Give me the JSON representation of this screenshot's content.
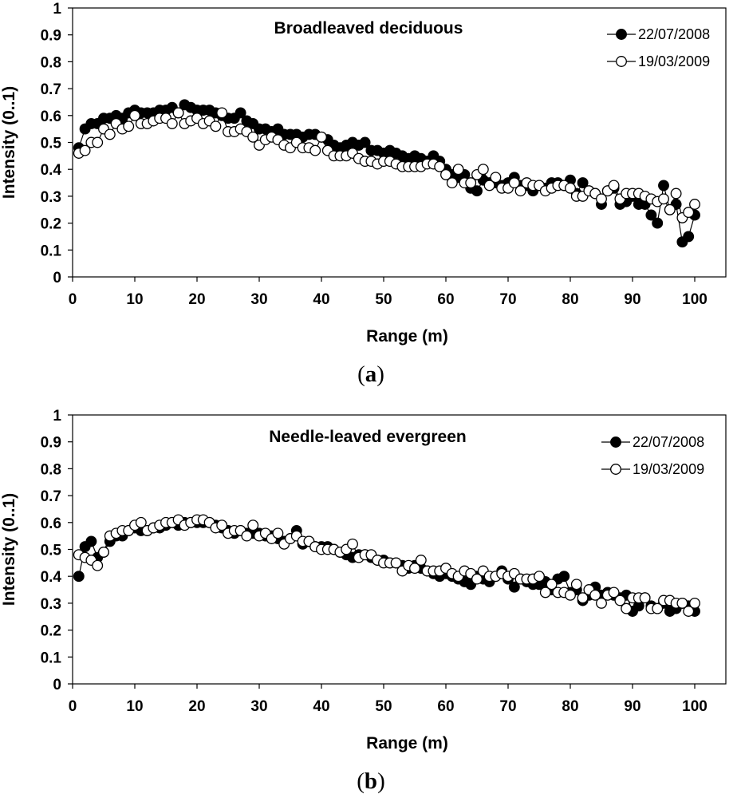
{
  "chart_data": [
    {
      "type": "scatter",
      "title": "Broadleaved deciduous",
      "xlabel": "Range (m)",
      "ylabel": "Intensity (0..1)",
      "xlim": [
        0,
        105
      ],
      "ylim": [
        0,
        1
      ],
      "xticks": [
        "0",
        "10",
        "20",
        "30",
        "40",
        "50",
        "60",
        "70",
        "80",
        "90",
        "100"
      ],
      "yticks": [
        "0",
        "0.1",
        "0.2",
        "0.3",
        "0.4",
        "0.5",
        "0.6",
        "0.7",
        "0.8",
        "0.9",
        "1"
      ],
      "panel_open": "(",
      "panel_letter": "a",
      "panel_close": ")",
      "series": [
        {
          "name": "22/07/2008",
          "marker": "filled",
          "x": [
            1,
            2,
            3,
            4,
            5,
            6,
            7,
            8,
            9,
            10,
            11,
            12,
            13,
            14,
            15,
            16,
            17,
            18,
            19,
            20,
            21,
            22,
            23,
            24,
            25,
            26,
            27,
            28,
            29,
            30,
            31,
            32,
            33,
            34,
            35,
            36,
            37,
            38,
            39,
            40,
            41,
            42,
            43,
            44,
            45,
            46,
            47,
            48,
            49,
            50,
            51,
            52,
            53,
            54,
            55,
            56,
            57,
            58,
            59,
            60,
            61,
            62,
            63,
            64,
            65,
            66,
            67,
            68,
            69,
            70,
            71,
            72,
            73,
            74,
            75,
            76,
            77,
            78,
            79,
            80,
            81,
            82,
            83,
            84,
            85,
            86,
            87,
            88,
            89,
            90,
            91,
            92,
            93,
            94,
            95,
            96,
            97,
            98,
            99,
            100
          ],
          "values": [
            0.48,
            0.55,
            0.57,
            0.57,
            0.59,
            0.59,
            0.6,
            0.59,
            0.61,
            0.62,
            0.61,
            0.61,
            0.61,
            0.62,
            0.62,
            0.63,
            0.61,
            0.64,
            0.63,
            0.62,
            0.62,
            0.62,
            0.61,
            0.6,
            0.59,
            0.59,
            0.61,
            0.58,
            0.57,
            0.55,
            0.55,
            0.54,
            0.55,
            0.53,
            0.53,
            0.53,
            0.52,
            0.53,
            0.53,
            0.52,
            0.51,
            0.49,
            0.48,
            0.49,
            0.5,
            0.49,
            0.5,
            0.47,
            0.47,
            0.46,
            0.47,
            0.46,
            0.45,
            0.44,
            0.45,
            0.44,
            0.43,
            0.45,
            0.43,
            0.4,
            0.38,
            0.37,
            0.38,
            0.33,
            0.32,
            0.36,
            0.35,
            0.35,
            0.34,
            0.35,
            0.37,
            0.34,
            0.34,
            0.32,
            0.34,
            0.33,
            0.35,
            0.35,
            0.34,
            0.36,
            0.31,
            0.35,
            0.32,
            0.31,
            0.27,
            0.32,
            0.33,
            0.27,
            0.28,
            0.3,
            0.27,
            0.27,
            0.23,
            0.2,
            0.34,
            0.25,
            0.27,
            0.13,
            0.15,
            0.23
          ]
        },
        {
          "name": "19/03/2009",
          "marker": "open",
          "x": [
            1,
            2,
            3,
            4,
            5,
            6,
            7,
            8,
            9,
            10,
            11,
            12,
            13,
            14,
            15,
            16,
            17,
            18,
            19,
            20,
            21,
            22,
            23,
            24,
            25,
            26,
            27,
            28,
            29,
            30,
            31,
            32,
            33,
            34,
            35,
            36,
            37,
            38,
            39,
            40,
            41,
            42,
            43,
            44,
            45,
            46,
            47,
            48,
            49,
            50,
            51,
            52,
            53,
            54,
            55,
            56,
            57,
            58,
            59,
            60,
            61,
            62,
            63,
            64,
            65,
            66,
            67,
            68,
            69,
            70,
            71,
            72,
            73,
            74,
            75,
            76,
            77,
            78,
            79,
            80,
            81,
            82,
            83,
            84,
            85,
            86,
            87,
            88,
            89,
            90,
            91,
            92,
            93,
            94,
            95,
            96,
            97,
            98,
            99,
            100
          ],
          "values": [
            0.46,
            0.47,
            0.5,
            0.5,
            0.55,
            0.53,
            0.57,
            0.55,
            0.56,
            0.6,
            0.57,
            0.57,
            0.58,
            0.59,
            0.59,
            0.57,
            0.61,
            0.57,
            0.58,
            0.59,
            0.57,
            0.58,
            0.56,
            0.61,
            0.54,
            0.54,
            0.55,
            0.54,
            0.52,
            0.49,
            0.51,
            0.52,
            0.51,
            0.49,
            0.48,
            0.5,
            0.48,
            0.48,
            0.47,
            0.52,
            0.47,
            0.45,
            0.45,
            0.45,
            0.46,
            0.44,
            0.43,
            0.43,
            0.42,
            0.43,
            0.43,
            0.42,
            0.41,
            0.41,
            0.41,
            0.41,
            0.42,
            0.42,
            0.41,
            0.38,
            0.35,
            0.4,
            0.35,
            0.35,
            0.38,
            0.4,
            0.34,
            0.37,
            0.33,
            0.33,
            0.35,
            0.32,
            0.35,
            0.34,
            0.34,
            0.32,
            0.33,
            0.34,
            0.34,
            0.33,
            0.3,
            0.3,
            0.32,
            0.31,
            0.29,
            0.32,
            0.34,
            0.29,
            0.31,
            0.31,
            0.31,
            0.3,
            0.29,
            0.28,
            0.29,
            0.25,
            0.31,
            0.22,
            0.24,
            0.27
          ]
        }
      ]
    },
    {
      "type": "scatter",
      "title": "Needle-leaved evergreen",
      "xlabel": "Range (m)",
      "ylabel": "Intensity (0..1)",
      "xlim": [
        0,
        105
      ],
      "ylim": [
        0,
        1
      ],
      "xticks": [
        "0",
        "10",
        "20",
        "30",
        "40",
        "50",
        "60",
        "70",
        "80",
        "90",
        "100"
      ],
      "yticks": [
        "0",
        "0.1",
        "0.2",
        "0.3",
        "0.4",
        "0.5",
        "0.6",
        "0.7",
        "0.8",
        "0.9",
        "1"
      ],
      "panel_open": "(",
      "panel_letter": "b",
      "panel_close": ")",
      "series": [
        {
          "name": "22/07/2008",
          "marker": "filled",
          "x": [
            1,
            2,
            3,
            4,
            5,
            6,
            7,
            8,
            9,
            10,
            11,
            12,
            13,
            14,
            15,
            16,
            17,
            18,
            19,
            20,
            21,
            22,
            23,
            24,
            25,
            26,
            27,
            28,
            29,
            30,
            31,
            32,
            33,
            34,
            35,
            36,
            37,
            38,
            39,
            40,
            41,
            42,
            43,
            44,
            45,
            46,
            47,
            48,
            49,
            50,
            51,
            52,
            53,
            54,
            55,
            56,
            57,
            58,
            59,
            60,
            61,
            62,
            63,
            64,
            65,
            66,
            67,
            68,
            69,
            70,
            71,
            72,
            73,
            74,
            75,
            76,
            77,
            78,
            79,
            80,
            81,
            82,
            83,
            84,
            85,
            86,
            87,
            88,
            89,
            90,
            91,
            92,
            93,
            94,
            95,
            96,
            97,
            98,
            99,
            100
          ],
          "values": [
            0.4,
            0.51,
            0.53,
            0.47,
            0.49,
            0.53,
            0.55,
            0.55,
            0.57,
            0.58,
            0.57,
            0.57,
            0.58,
            0.58,
            0.59,
            0.6,
            0.59,
            0.6,
            0.6,
            0.6,
            0.6,
            0.6,
            0.59,
            0.58,
            0.57,
            0.56,
            0.57,
            0.56,
            0.56,
            0.56,
            0.55,
            0.55,
            0.54,
            0.53,
            0.54,
            0.57,
            0.52,
            0.53,
            0.51,
            0.51,
            0.51,
            0.5,
            0.49,
            0.48,
            0.47,
            0.48,
            0.48,
            0.47,
            0.46,
            0.46,
            0.45,
            0.45,
            0.44,
            0.43,
            0.44,
            0.43,
            0.42,
            0.41,
            0.4,
            0.41,
            0.4,
            0.39,
            0.38,
            0.37,
            0.4,
            0.39,
            0.38,
            0.4,
            0.42,
            0.39,
            0.36,
            0.39,
            0.38,
            0.37,
            0.37,
            0.38,
            0.35,
            0.39,
            0.4,
            0.34,
            0.35,
            0.31,
            0.33,
            0.36,
            0.33,
            0.34,
            0.33,
            0.32,
            0.33,
            0.27,
            0.29,
            0.32,
            0.29,
            0.28,
            0.3,
            0.27,
            0.28,
            0.3,
            0.29,
            0.27
          ]
        },
        {
          "name": "19/03/2009",
          "marker": "open",
          "x": [
            1,
            2,
            3,
            4,
            5,
            6,
            7,
            8,
            9,
            10,
            11,
            12,
            13,
            14,
            15,
            16,
            17,
            18,
            19,
            20,
            21,
            22,
            23,
            24,
            25,
            26,
            27,
            28,
            29,
            30,
            31,
            32,
            33,
            34,
            35,
            36,
            37,
            38,
            39,
            40,
            41,
            42,
            43,
            44,
            45,
            46,
            47,
            48,
            49,
            50,
            51,
            52,
            53,
            54,
            55,
            56,
            57,
            58,
            59,
            60,
            61,
            62,
            63,
            64,
            65,
            66,
            67,
            68,
            69,
            70,
            71,
            72,
            73,
            74,
            75,
            76,
            77,
            78,
            79,
            80,
            81,
            82,
            83,
            84,
            85,
            86,
            87,
            88,
            89,
            90,
            91,
            92,
            93,
            94,
            95,
            96,
            97,
            98,
            99,
            100
          ],
          "values": [
            0.48,
            0.47,
            0.46,
            0.44,
            0.49,
            0.55,
            0.56,
            0.57,
            0.57,
            0.59,
            0.6,
            0.57,
            0.58,
            0.59,
            0.6,
            0.6,
            0.61,
            0.59,
            0.6,
            0.61,
            0.61,
            0.6,
            0.58,
            0.59,
            0.56,
            0.57,
            0.57,
            0.55,
            0.59,
            0.55,
            0.56,
            0.54,
            0.56,
            0.52,
            0.54,
            0.55,
            0.53,
            0.53,
            0.51,
            0.5,
            0.5,
            0.5,
            0.49,
            0.5,
            0.52,
            0.47,
            0.48,
            0.48,
            0.46,
            0.45,
            0.45,
            0.45,
            0.42,
            0.44,
            0.43,
            0.46,
            0.42,
            0.42,
            0.42,
            0.43,
            0.41,
            0.4,
            0.42,
            0.41,
            0.39,
            0.42,
            0.4,
            0.4,
            0.41,
            0.4,
            0.41,
            0.39,
            0.39,
            0.39,
            0.4,
            0.34,
            0.37,
            0.34,
            0.34,
            0.33,
            0.37,
            0.32,
            0.35,
            0.33,
            0.3,
            0.33,
            0.34,
            0.31,
            0.28,
            0.32,
            0.32,
            0.32,
            0.28,
            0.28,
            0.31,
            0.31,
            0.3,
            0.3,
            0.27,
            0.3
          ]
        }
      ]
    }
  ]
}
